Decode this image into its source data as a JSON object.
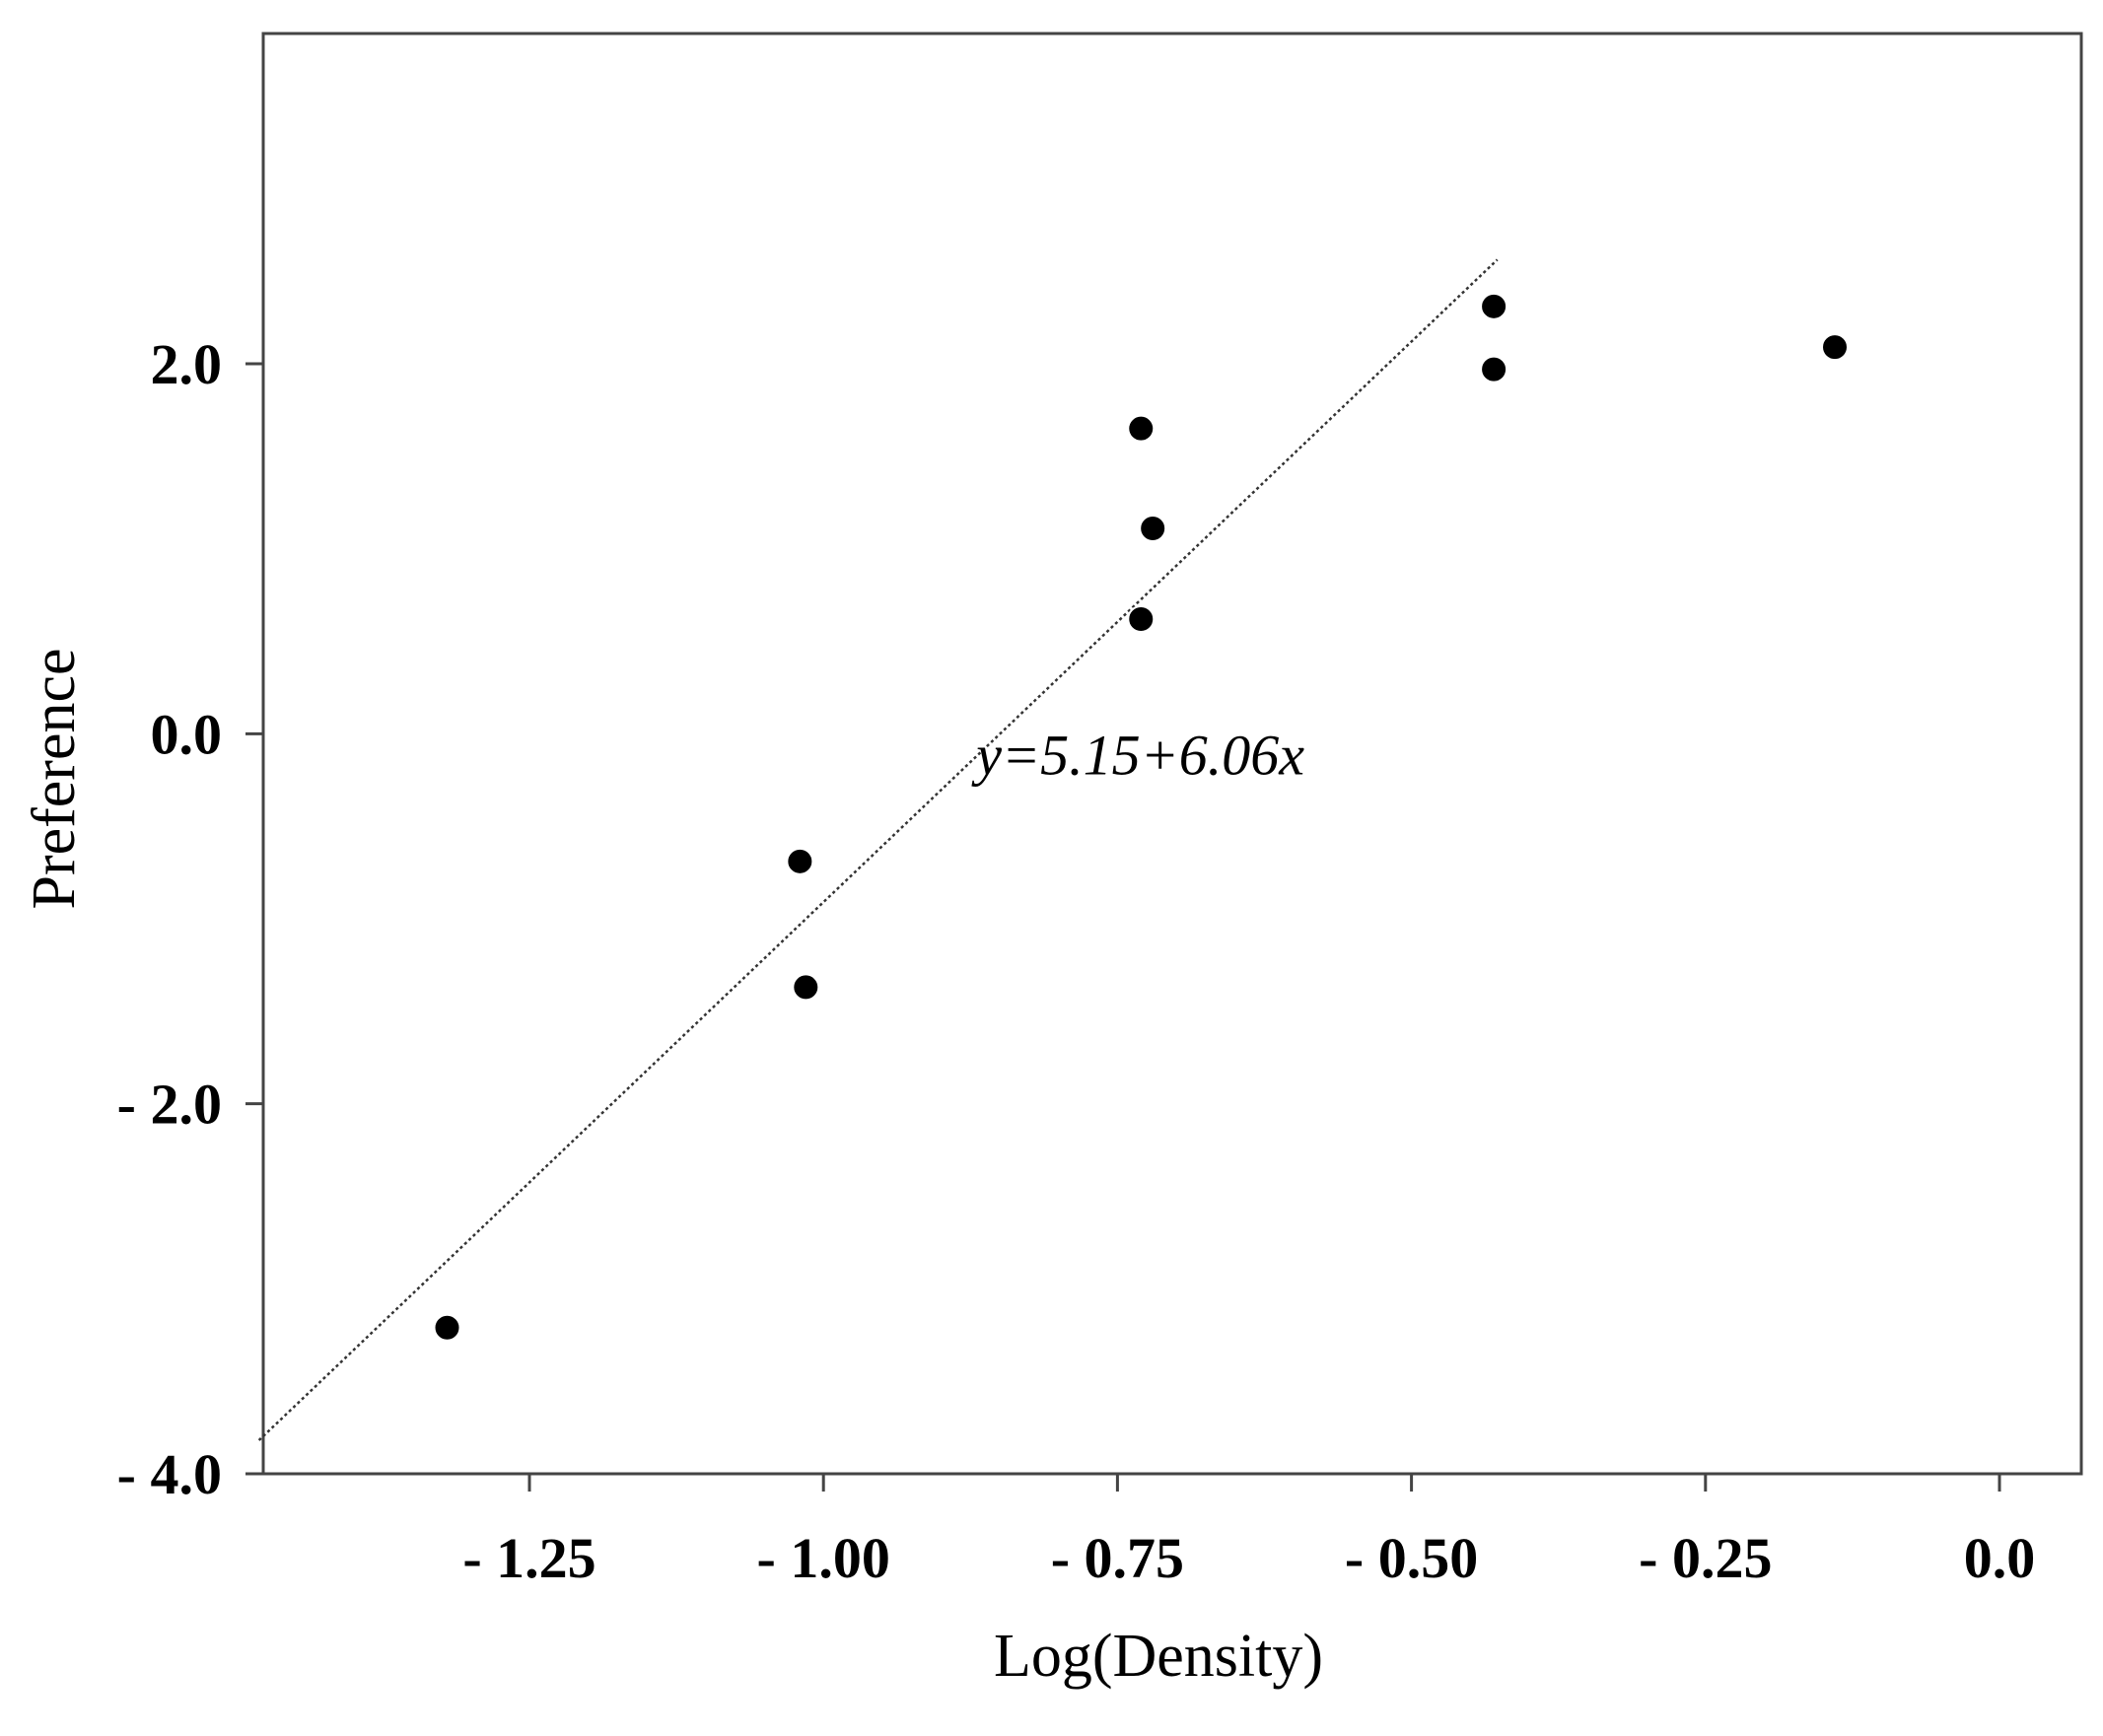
{
  "chart_data": {
    "type": "scatter",
    "xlabel": "Log(Density)",
    "ylabel": "Preference",
    "xlim": [
      -1.5,
      0.15
    ],
    "ylim": [
      -4.0,
      3.8
    ],
    "x_ticks": [
      -1.25,
      -1.0,
      -0.75,
      -0.5,
      -0.25,
      0.0
    ],
    "x_tick_labels": [
      "- 1.25",
      "- 1.00",
      "- 0.75",
      "- 0.50",
      "- 0.25",
      "0.0"
    ],
    "y_ticks": [
      -4.0,
      -2.0,
      0.0,
      2.0
    ],
    "y_tick_labels": [
      "- 4.0",
      "- 2.0",
      "0.0",
      "2.0"
    ],
    "grid": false,
    "points": [
      {
        "x": -1.32,
        "y": -3.21
      },
      {
        "x": -1.02,
        "y": -0.69
      },
      {
        "x": -1.015,
        "y": -1.37
      },
      {
        "x": -0.73,
        "y": 1.65
      },
      {
        "x": -0.72,
        "y": 1.11
      },
      {
        "x": -0.73,
        "y": 0.62
      },
      {
        "x": -0.43,
        "y": 2.31
      },
      {
        "x": -0.43,
        "y": 1.97
      },
      {
        "x": -0.14,
        "y": 2.09
      }
    ],
    "fit_line": {
      "intercept": 5.15,
      "slope": 6.06,
      "x_range": [
        -1.48,
        -0.427
      ],
      "style": "dotted"
    },
    "annotations": [
      {
        "text": "y=5.15+6.06x",
        "x": -0.87,
        "y": -0.22
      }
    ]
  }
}
